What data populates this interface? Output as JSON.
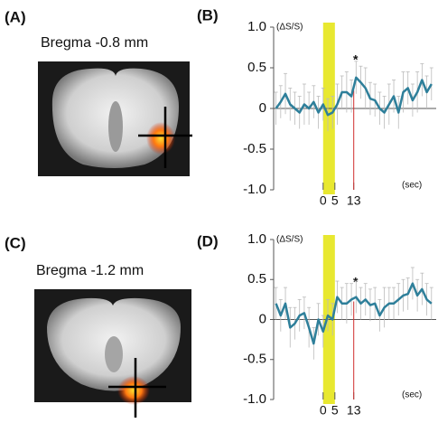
{
  "images": [
    {
      "label": "(A)",
      "caption": "Bregma -0.8 mm"
    },
    {
      "label": "(C)",
      "caption": "Bregma -1.2 mm"
    }
  ],
  "chart_data": [
    {
      "type": "line",
      "label": "(B)",
      "y_label": "(ΔS/S)",
      "x_label": "(sec)",
      "annotation": "*",
      "xlim": [
        -21,
        48
      ],
      "xticks": [
        0,
        5,
        13
      ],
      "highlight": [
        0,
        5
      ],
      "marker": 13,
      "ylim": [
        -1,
        1
      ],
      "yticks": [
        {
          "value": 1,
          "label": "1.0"
        },
        0.5,
        0,
        -0.5,
        {
          "value": -1,
          "label": "-1.0"
        }
      ],
      "x": [
        -20,
        -18,
        -16,
        -14,
        -12,
        -10,
        -8,
        -6,
        -4,
        -2,
        0,
        2,
        4,
        6,
        8,
        10,
        12,
        14,
        16,
        18,
        20,
        22,
        24,
        26,
        28,
        30,
        32,
        34,
        36,
        38,
        40,
        42,
        44,
        46
      ],
      "series": [
        {
          "color": "#2e7f9a",
          "values": [
            0.0,
            0.08,
            0.18,
            0.05,
            0.0,
            -0.05,
            0.05,
            0.0,
            0.08,
            -0.05,
            0.05,
            -0.08,
            -0.05,
            0.05,
            0.2,
            0.2,
            0.15,
            0.38,
            0.32,
            0.25,
            0.12,
            0.1,
            0.0,
            -0.05,
            0.05,
            0.15,
            -0.05,
            0.2,
            0.25,
            0.1,
            0.2,
            0.35,
            0.2,
            0.3
          ],
          "errors": [
            0.2,
            0.2,
            0.25,
            0.2,
            0.2,
            0.2,
            0.25,
            0.2,
            0.2,
            0.2,
            0.2,
            0.2,
            0.2,
            0.25,
            0.2,
            0.25,
            0.2,
            0.2,
            0.2,
            0.25,
            0.2,
            0.2,
            0.2,
            0.2,
            0.25,
            0.2,
            0.2,
            0.25,
            0.2,
            0.2,
            0.25,
            0.2,
            0.2,
            0.2
          ]
        }
      ]
    },
    {
      "type": "line",
      "label": "(D)",
      "y_label": "(ΔS/S)",
      "x_label": "(sec)",
      "annotation": "*",
      "xlim": [
        -21,
        48
      ],
      "xticks": [
        0,
        5,
        13
      ],
      "highlight": [
        0,
        5
      ],
      "marker": 13,
      "ylim": [
        -1,
        1
      ],
      "yticks": [
        {
          "value": 1,
          "label": "1.0"
        },
        0.5,
        0,
        -0.5,
        {
          "value": -1,
          "label": "-1.0"
        }
      ],
      "x": [
        -20,
        -18,
        -16,
        -14,
        -12,
        -10,
        -8,
        -6,
        -4,
        -2,
        0,
        2,
        4,
        6,
        8,
        10,
        12,
        14,
        16,
        18,
        20,
        22,
        24,
        26,
        28,
        30,
        32,
        34,
        36,
        38,
        40,
        42,
        44,
        46
      ],
      "series": [
        {
          "color": "#2e7f9a",
          "values": [
            0.2,
            0.05,
            0.2,
            -0.1,
            -0.05,
            0.05,
            0.08,
            -0.1,
            -0.3,
            0.0,
            -0.15,
            0.05,
            0.0,
            0.28,
            0.2,
            0.2,
            0.25,
            0.28,
            0.2,
            0.25,
            0.18,
            0.2,
            0.05,
            0.15,
            0.2,
            0.2,
            0.25,
            0.3,
            0.32,
            0.45,
            0.3,
            0.38,
            0.25,
            0.2
          ],
          "errors": [
            0.2,
            0.2,
            0.2,
            0.25,
            0.2,
            0.2,
            0.2,
            0.25,
            0.2,
            0.2,
            0.2,
            0.2,
            0.2,
            0.2,
            0.2,
            0.25,
            0.2,
            0.2,
            0.2,
            0.2,
            0.2,
            0.2,
            0.2,
            0.25,
            0.2,
            0.2,
            0.2,
            0.2,
            0.2,
            0.2,
            0.2,
            0.2,
            0.2,
            0.2
          ]
        }
      ]
    }
  ]
}
